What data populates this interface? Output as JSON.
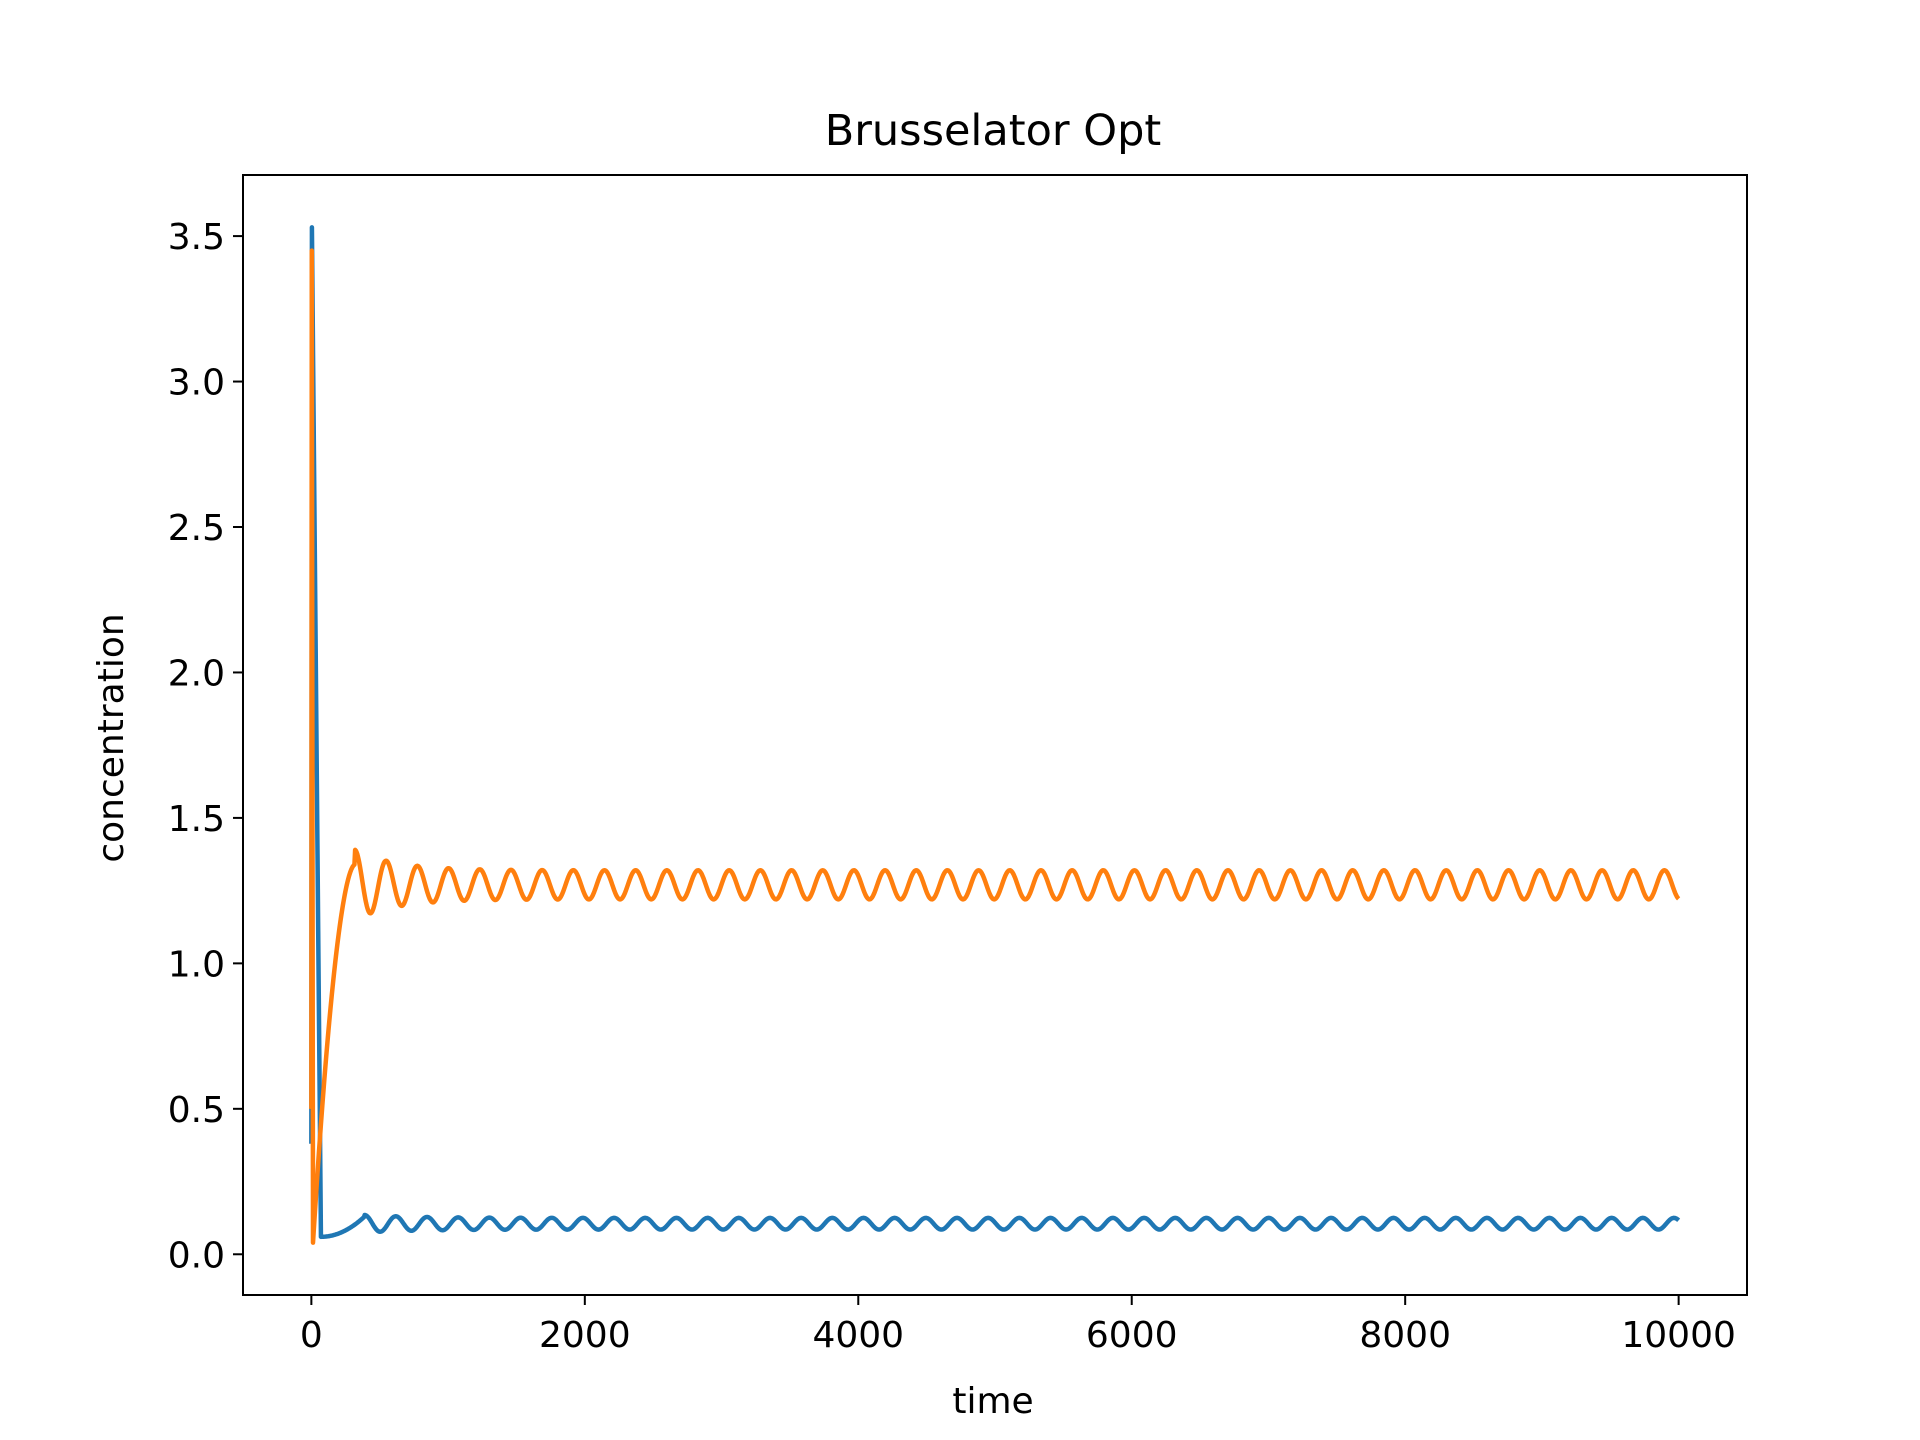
{
  "chart_data": {
    "type": "line",
    "title": "Brusselator Opt",
    "xlabel": "time",
    "ylabel": "concentration",
    "xlim": [
      -500,
      10500
    ],
    "ylim": [
      -0.14,
      3.71
    ],
    "xticks": [
      0,
      2000,
      4000,
      6000,
      8000,
      10000
    ],
    "xtick_labels": [
      "0",
      "2000",
      "4000",
      "6000",
      "8000",
      "10000"
    ],
    "yticks": [
      0.0,
      0.5,
      1.0,
      1.5,
      2.0,
      2.5,
      3.0,
      3.5
    ],
    "ytick_labels": [
      "0.0",
      "0.5",
      "1.0",
      "1.5",
      "2.0",
      "2.5",
      "3.0",
      "3.5"
    ],
    "grid": false,
    "legend": "none",
    "series": [
      {
        "color": "#1f77b4",
        "initial_peak": 3.53,
        "initial_value": 0.38,
        "early_min": 0.06,
        "oscillation_center": 0.105,
        "oscillation_amplitude": 0.02,
        "oscillation_period": 228,
        "end_value": 0.12
      },
      {
        "color": "#ff7f0e",
        "initial_peak": 3.45,
        "initial_min": 0.04,
        "rise_to": 1.34,
        "oscillation_center": 1.27,
        "oscillation_amplitude": 0.05,
        "oscillation_period": 228,
        "end_value": 1.25
      }
    ]
  }
}
